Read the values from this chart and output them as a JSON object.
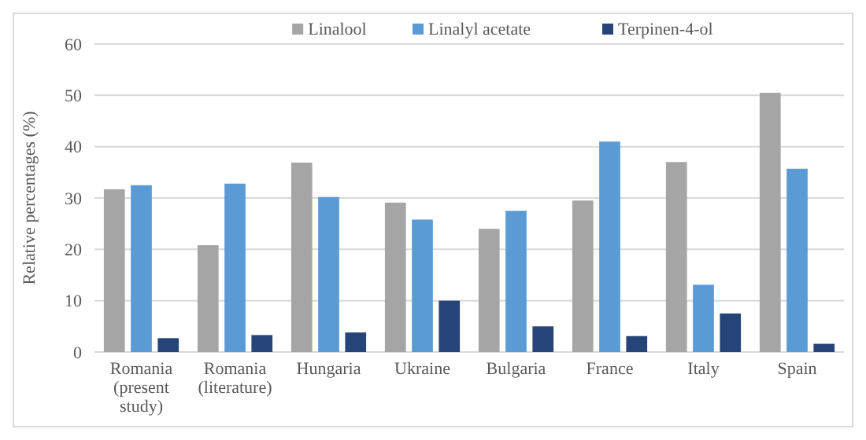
{
  "chart_data": {
    "type": "bar",
    "ylabel": "Relative percentages (%)",
    "categories": [
      "Romania (present study)",
      "Romania (literature)",
      "Hungaria",
      "Ukraine",
      "Bulgaria",
      "France",
      "Italy",
      "Spain"
    ],
    "series": [
      {
        "name": "Linalool",
        "color": "#a5a5a5",
        "values": [
          31.7,
          20.8,
          36.9,
          29.1,
          24,
          29.5,
          37,
          50.5
        ]
      },
      {
        "name": "Linalyl acetate",
        "color": "#5b9bd5",
        "values": [
          32.5,
          32.8,
          30.2,
          25.8,
          27.5,
          41,
          13.1,
          35.7
        ]
      },
      {
        "name": "Terpinen-4-ol",
        "color": "#264478",
        "values": [
          2.7,
          3.3,
          3.8,
          10,
          5,
          3.1,
          7.5,
          1.6
        ]
      }
    ],
    "ylim": [
      0,
      60
    ],
    "yticks": [
      0,
      10,
      20,
      30,
      40,
      50,
      60
    ],
    "grid": "y",
    "legend": "top"
  }
}
